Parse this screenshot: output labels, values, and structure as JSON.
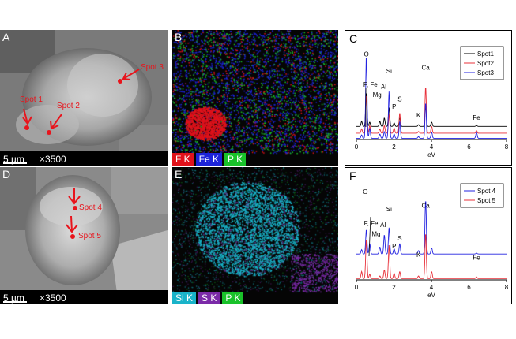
{
  "panels": {
    "A": {
      "letter": "A",
      "scale": "5 µm",
      "mag": "×3500",
      "spots": [
        "Spot 1",
        "Spot 2",
        "Spot 3"
      ]
    },
    "B": {
      "letter": "B",
      "elements": [
        {
          "label": "F K",
          "color": "#e0121b"
        },
        {
          "label": "Fe K",
          "color": "#1c23d8"
        },
        {
          "label": "P K",
          "color": "#19c22a"
        }
      ]
    },
    "D": {
      "letter": "D",
      "scale": "5 µm",
      "mag": "×3500",
      "spots": [
        "Spot 4",
        "Spot 5"
      ]
    },
    "E": {
      "letter": "E",
      "elements": [
        {
          "label": "Si K",
          "color": "#19b3c9"
        },
        {
          "label": "S K",
          "color": "#7b2aa8"
        },
        {
          "label": "P K",
          "color": "#19c22a"
        }
      ]
    }
  },
  "chart_data": [
    {
      "panel": "C",
      "type": "line",
      "xlabel": "eV",
      "xlim": [
        0,
        8
      ],
      "xticks": [
        0,
        2,
        4,
        6,
        8
      ],
      "legend_position": "top-right",
      "series": [
        {
          "name": "Spot1",
          "color": "#000000",
          "offset": 0.14,
          "peaks": [
            [
              0.28,
              0.06
            ],
            [
              0.53,
              0.4
            ],
            [
              0.71,
              0.05
            ],
            [
              1.25,
              0.06
            ],
            [
              1.49,
              0.1
            ],
            [
              1.74,
              0.22
            ],
            [
              2.01,
              0.04
            ],
            [
              2.31,
              0.1
            ],
            [
              3.31,
              0.02
            ],
            [
              3.69,
              0.24
            ],
            [
              4.01,
              0.05
            ],
            [
              6.4,
              0.01
            ]
          ]
        },
        {
          "name": "Spot2",
          "color": "#e8303a",
          "offset": 0.06,
          "peaks": [
            [
              0.28,
              0.05
            ],
            [
              0.53,
              0.45
            ],
            [
              0.71,
              0.09
            ],
            [
              1.25,
              0.05
            ],
            [
              1.49,
              0.09
            ],
            [
              1.74,
              0.22
            ],
            [
              2.01,
              0.06
            ],
            [
              2.31,
              0.24
            ],
            [
              3.31,
              0.02
            ],
            [
              3.69,
              0.55
            ],
            [
              4.01,
              0.08
            ],
            [
              6.4,
              0.03
            ]
          ]
        },
        {
          "name": "Spot3",
          "color": "#2323e0",
          "offset": 0.0,
          "peaks": [
            [
              0.28,
              0.04
            ],
            [
              0.53,
              0.98
            ],
            [
              0.71,
              0.12
            ],
            [
              1.25,
              0.05
            ],
            [
              1.49,
              0.08
            ],
            [
              1.74,
              0.55
            ],
            [
              2.01,
              0.05
            ],
            [
              2.31,
              0.2
            ],
            [
              3.31,
              0.02
            ],
            [
              3.69,
              0.42
            ],
            [
              4.01,
              0.07
            ],
            [
              6.4,
              0.07
            ]
          ]
        }
      ],
      "annotations": [
        {
          "text": "O",
          "x": 0.53
        },
        {
          "text": "F, Fe",
          "x": 0.75
        },
        {
          "text": "Mg",
          "x": 1.1
        },
        {
          "text": "Al",
          "x": 1.45
        },
        {
          "text": "Si",
          "x": 1.74
        },
        {
          "text": "P",
          "x": 2.01
        },
        {
          "text": "S",
          "x": 2.31
        },
        {
          "text": "K",
          "x": 3.31
        },
        {
          "text": "Ca",
          "x": 3.69
        },
        {
          "text": "Fe",
          "x": 6.4
        }
      ]
    },
    {
      "panel": "F",
      "type": "line",
      "xlabel": "eV",
      "xlim": [
        0,
        8
      ],
      "xticks": [
        0,
        2,
        4,
        6,
        8
      ],
      "legend_position": "top-right",
      "series": [
        {
          "name": "Spot 4",
          "color": "#2323e0",
          "offset": 0.28,
          "peaks": [
            [
              0.28,
              0.05
            ],
            [
              0.53,
              0.28
            ],
            [
              0.71,
              0.12
            ],
            [
              1.25,
              0.08
            ],
            [
              1.49,
              0.22
            ],
            [
              1.74,
              0.3
            ],
            [
              2.01,
              0.06
            ],
            [
              2.31,
              0.12
            ],
            [
              3.31,
              0.04
            ],
            [
              3.69,
              0.62
            ],
            [
              4.01,
              0.07
            ],
            [
              6.4,
              0.01
            ]
          ]
        },
        {
          "name": "Spot 5",
          "color": "#e8303a",
          "offset": 0.0,
          "peaks": [
            [
              0.28,
              0.08
            ],
            [
              0.53,
              0.45
            ],
            [
              0.71,
              0.05
            ],
            [
              1.25,
              0.03
            ],
            [
              1.49,
              0.1
            ],
            [
              1.74,
              0.38
            ],
            [
              2.01,
              0.06
            ],
            [
              2.31,
              0.08
            ],
            [
              3.31,
              0.03
            ],
            [
              3.69,
              0.52
            ],
            [
              4.01,
              0.08
            ],
            [
              6.4,
              0.02
            ]
          ]
        }
      ],
      "annotations": [
        {
          "text": "O",
          "x": 0.48
        },
        {
          "text": "F, Fe",
          "x": 0.78
        },
        {
          "text": "Mg",
          "x": 1.05
        },
        {
          "text": "Al",
          "x": 1.42
        },
        {
          "text": "Si",
          "x": 1.74
        },
        {
          "text": "P",
          "x": 2.01
        },
        {
          "text": "S",
          "x": 2.31
        },
        {
          "text": "K",
          "x": 3.31
        },
        {
          "text": "Ca",
          "x": 3.69
        },
        {
          "text": "Fe",
          "x": 6.4
        }
      ]
    }
  ],
  "plot_letters": {
    "C": "C",
    "F": "F"
  }
}
